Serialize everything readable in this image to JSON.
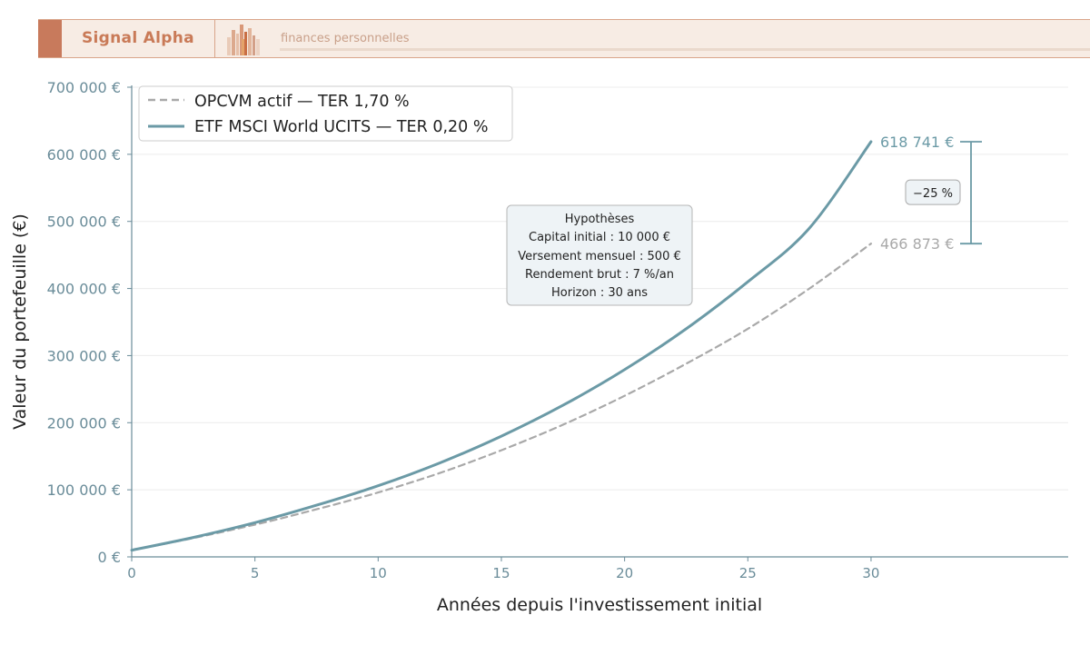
{
  "brand": {
    "name": "Signal Alpha",
    "tagline": "finances personnelles",
    "accent_color": "#c97a57",
    "background_color": "#f7ece4"
  },
  "chart_data": {
    "type": "line",
    "xlabel": "Années depuis l'investissement initial",
    "ylabel": "Valeur du portefeuille (€)",
    "xlim": [
      0,
      38
    ],
    "ylim": [
      0,
      700000
    ],
    "x_ticks": [
      0,
      5,
      10,
      15,
      20,
      25,
      30
    ],
    "y_ticks": [
      0,
      100000,
      200000,
      300000,
      400000,
      500000,
      600000,
      700000
    ],
    "y_tick_labels": [
      "0 €",
      "100 000 €",
      "200 000 €",
      "300 000 €",
      "400 000 €",
      "500 000 €",
      "600 000 €",
      "700 000 €"
    ],
    "grid": "horizontal",
    "legend_position": "top-left",
    "x": [
      0,
      2.5,
      5,
      7.5,
      10,
      12.5,
      15,
      17.5,
      20,
      22.5,
      25,
      27.5,
      30
    ],
    "series": [
      {
        "name": "OPCVM actif — TER 1,70 %",
        "style": "dashed",
        "color": "#a9a9a9",
        "values": [
          10000,
          28000,
          48000,
          71000,
          96000,
          125000,
          159000,
          197000,
          240000,
          288000,
          340000,
          400000,
          466873
        ]
      },
      {
        "name": "ETF MSCI World UCITS — TER 0,20 %",
        "style": "solid",
        "color": "#6b9aa6",
        "values": [
          10000,
          29000,
          51000,
          77000,
          106000,
          140000,
          180000,
          226000,
          279000,
          340000,
          410000,
          490000,
          618741
        ]
      }
    ],
    "end_labels": [
      "466 873 €",
      "618 741 €"
    ],
    "gap_label": "−25 %",
    "assumptions": {
      "title": "Hypothèses",
      "lines": [
        "Capital initial : 10 000 €",
        "Versement mensuel : 500 €",
        "Rendement brut : 7 %/an",
        "Horizon : 30 ans"
      ]
    }
  }
}
